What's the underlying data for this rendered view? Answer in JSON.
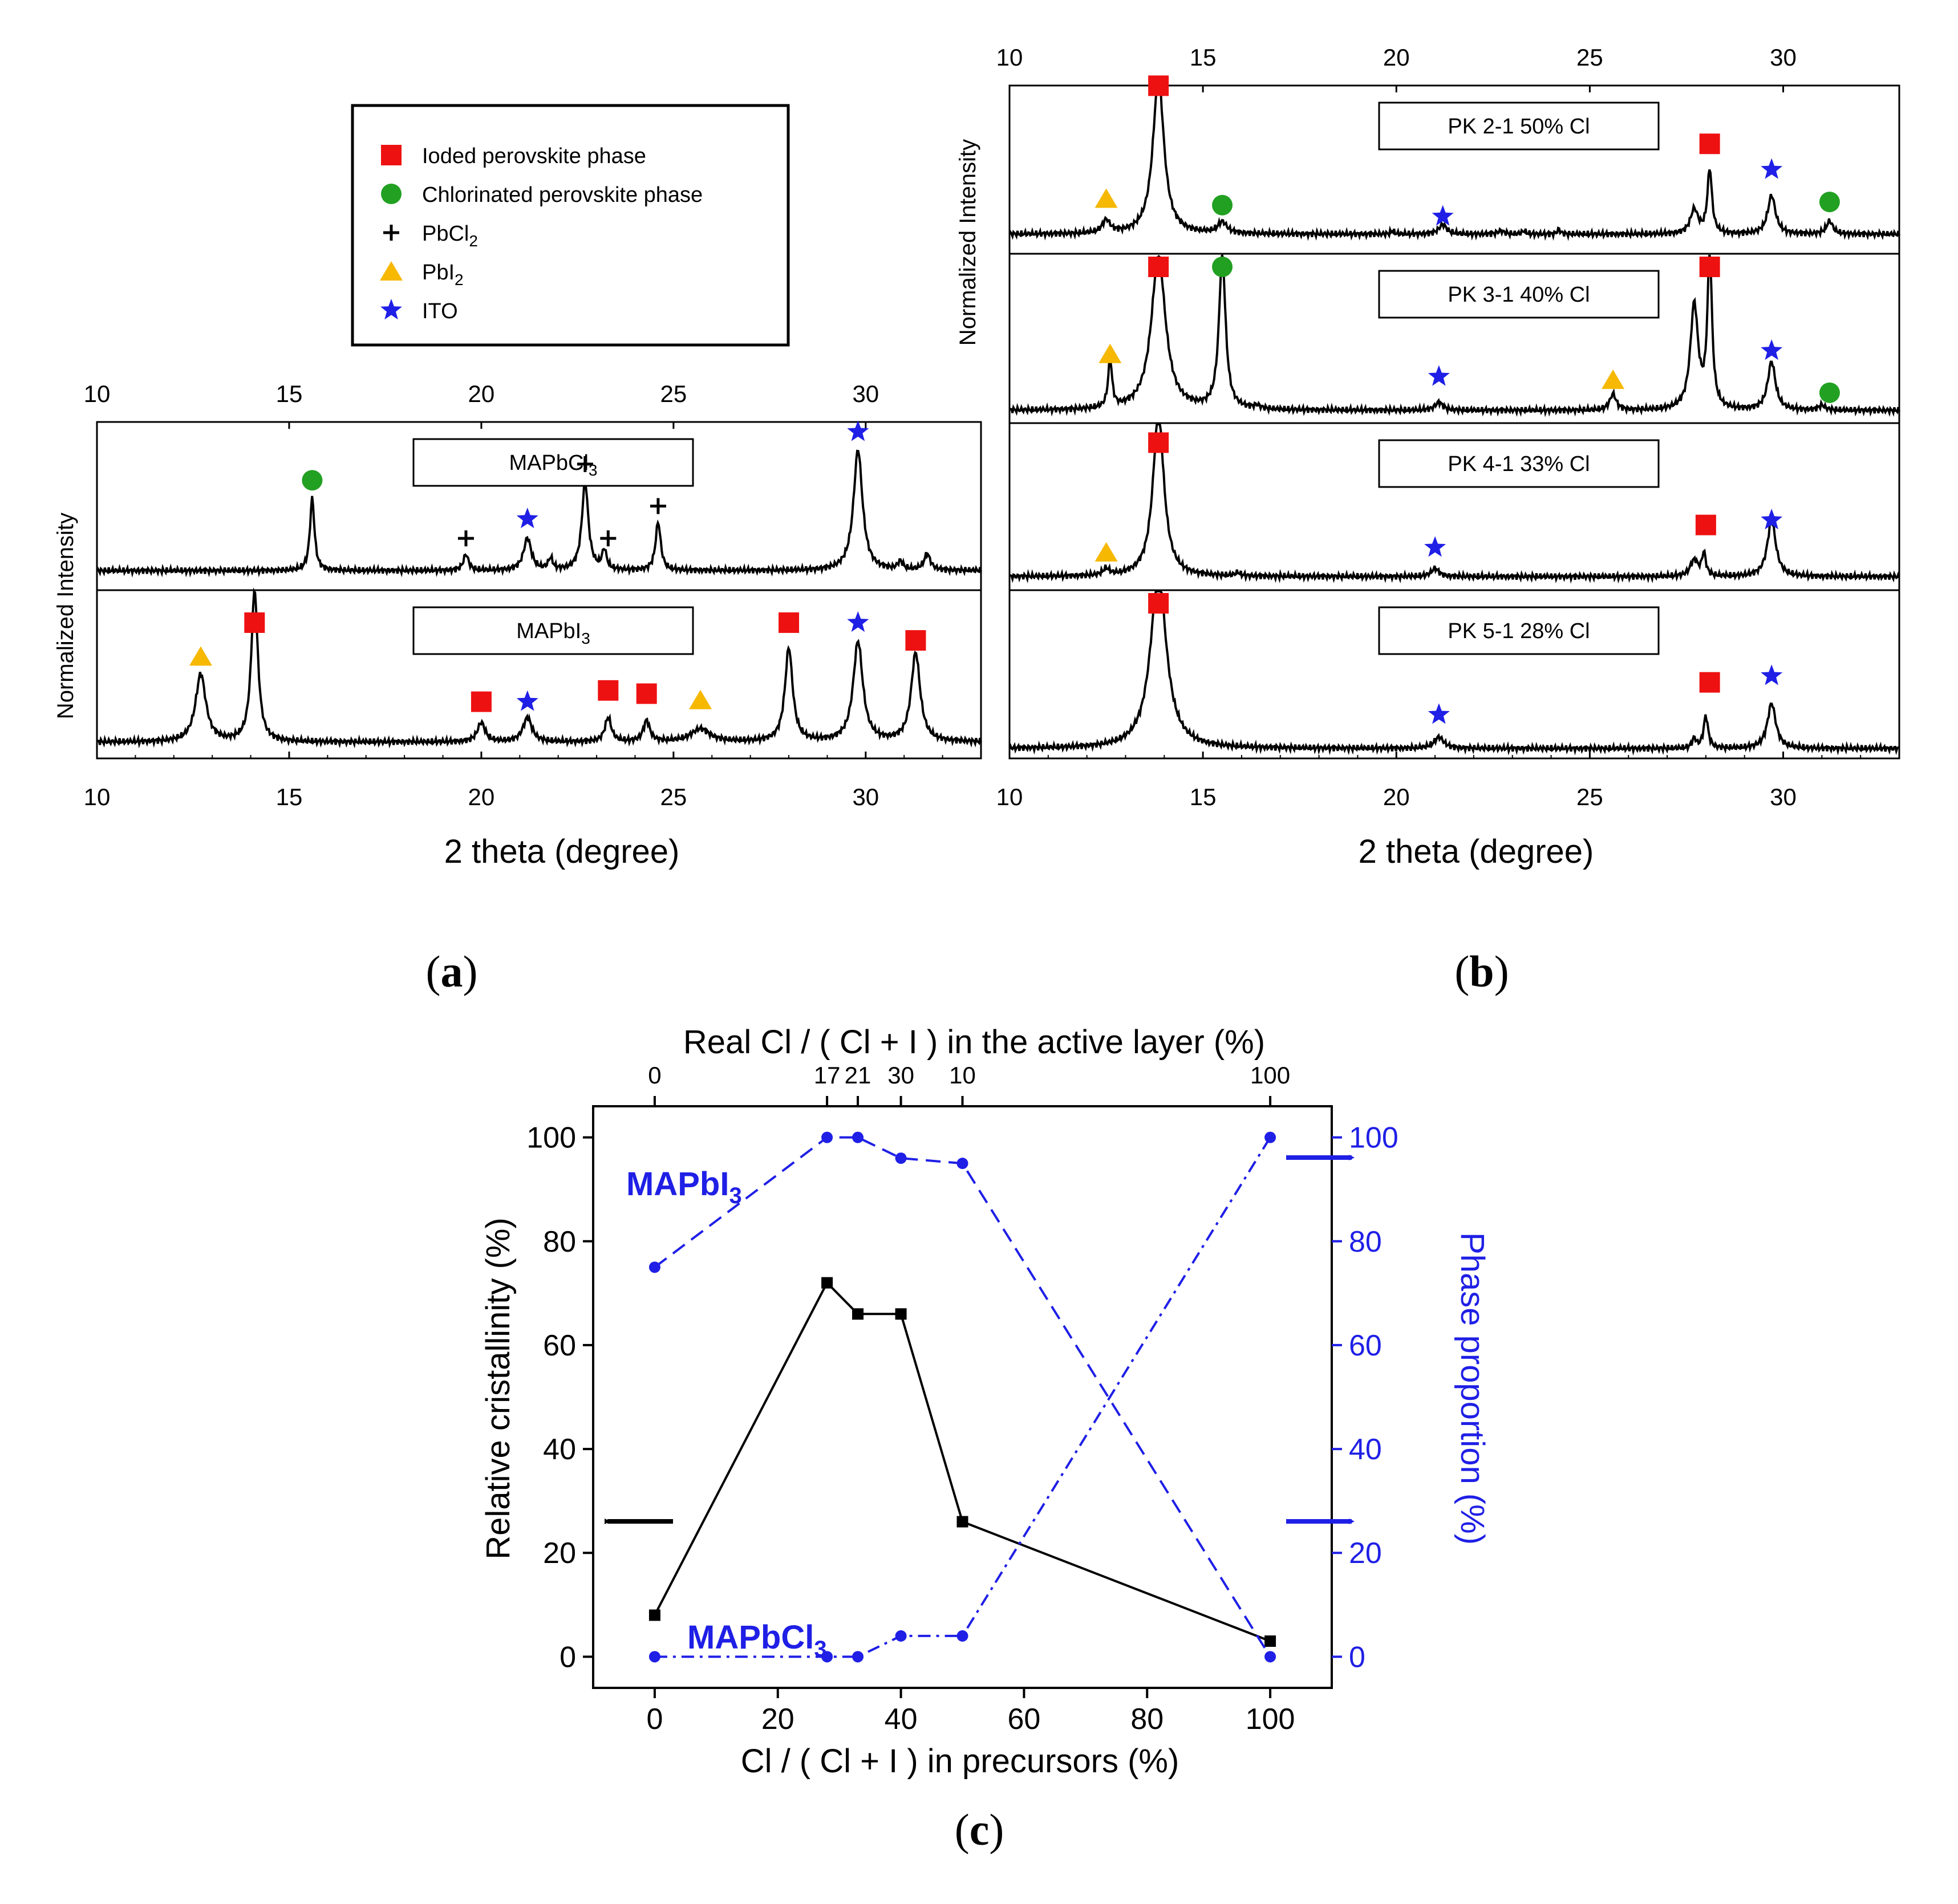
{
  "colors": {
    "axis": "#000000",
    "curve": "#000000",
    "iodide": "#ee1111",
    "chlorinated": "#22a022",
    "pbcl2": "#000000",
    "pbi2": "#f6b800",
    "ito": "#1f1fe6",
    "phase": "#1f1fe6"
  },
  "legend": [
    {
      "marker": "square",
      "color": "#ee1111",
      "label": "Ioded perovskite phase"
    },
    {
      "marker": "circle",
      "color": "#22a022",
      "label": "Chlorinated perovskite phase"
    },
    {
      "marker": "plus",
      "color": "#000000",
      "label": "PbCl",
      "sub": "2"
    },
    {
      "marker": "triangle",
      "color": "#f6b800",
      "label": "PbI",
      "sub": "2"
    },
    {
      "marker": "star",
      "color": "#1f1fe6",
      "label": "ITO"
    }
  ],
  "labels": {
    "ylabel_xrd": "Normalized Intensity",
    "xlabel_xrd": "2 theta (degree)",
    "xlabel_c": "Cl / ( Cl + I ) in precursors (%)",
    "xlabel_c_top": "Real Cl / ( Cl + I ) in the active layer (%)",
    "ylabel_c_left": "Relative cristallinity (%)",
    "ylabel_c_right": "Phase proportion (%)",
    "annot_mapbi3": "MAPbI",
    "annot_mapbcl3": "MAPbCl",
    "annot_sub": "3",
    "panel_a": "a",
    "panel_b": "b",
    "panel_c": "c"
  },
  "chart_data": [
    {
      "id": "a",
      "type": "line",
      "xlabel": "2 theta (degree)",
      "ylabel": "Normalized Intensity",
      "xlim": [
        10,
        33
      ],
      "xticks": [
        10,
        15,
        20,
        25,
        30
      ],
      "panels": [
        {
          "label": "MAPbCl",
          "label_sub": "3",
          "baseline": 0.1,
          "peaks": [
            [
              15.6,
              0.45,
              0.07
            ],
            [
              19.6,
              0.1,
              0.08
            ],
            [
              21.2,
              0.2,
              0.12
            ],
            [
              21.8,
              0.07,
              0.07
            ],
            [
              22.7,
              0.55,
              0.1
            ],
            [
              23.2,
              0.12,
              0.07
            ],
            [
              24.6,
              0.3,
              0.08
            ],
            [
              29.8,
              0.75,
              0.14
            ],
            [
              30.9,
              0.05,
              0.08
            ],
            [
              31.6,
              0.1,
              0.1
            ]
          ],
          "markers": [
            {
              "type": "circle",
              "x": 15.6,
              "y": 0.66
            },
            {
              "type": "plus",
              "x": 19.6,
              "y": 0.3
            },
            {
              "type": "star",
              "x": 21.2,
              "y": 0.42
            },
            {
              "type": "plus",
              "x": 22.7,
              "y": 0.76
            },
            {
              "type": "plus",
              "x": 23.3,
              "y": 0.3
            },
            {
              "type": "plus",
              "x": 24.6,
              "y": 0.5
            },
            {
              "type": "star",
              "x": 29.8,
              "y": 0.96
            }
          ]
        },
        {
          "label": "MAPbI",
          "label_sub": "3",
          "baseline": 0.08,
          "peaks": [
            [
              12.7,
              0.42,
              0.16
            ],
            [
              14.1,
              0.95,
              0.1
            ],
            [
              20.0,
              0.12,
              0.12
            ],
            [
              21.2,
              0.15,
              0.14
            ],
            [
              23.3,
              0.15,
              0.1
            ],
            [
              24.3,
              0.13,
              0.1
            ],
            [
              25.7,
              0.08,
              0.3
            ],
            [
              28.0,
              0.58,
              0.12
            ],
            [
              29.8,
              0.62,
              0.15
            ],
            [
              31.3,
              0.55,
              0.14
            ]
          ],
          "markers": [
            {
              "type": "triangle",
              "x": 12.7,
              "y": 0.61
            },
            {
              "type": "square",
              "x": 14.1,
              "y": 0.82
            },
            {
              "type": "square",
              "x": 20.0,
              "y": 0.33
            },
            {
              "type": "star",
              "x": 21.2,
              "y": 0.33
            },
            {
              "type": "square",
              "x": 23.3,
              "y": 0.4
            },
            {
              "type": "square",
              "x": 24.3,
              "y": 0.38
            },
            {
              "type": "triangle",
              "x": 25.7,
              "y": 0.34
            },
            {
              "type": "square",
              "x": 28.0,
              "y": 0.82
            },
            {
              "type": "star",
              "x": 29.8,
              "y": 0.82
            },
            {
              "type": "square",
              "x": 31.3,
              "y": 0.71
            }
          ]
        }
      ]
    },
    {
      "id": "b",
      "type": "line",
      "xlabel": "2 theta (degree)",
      "ylabel": "Normalized Intensity",
      "xlim": [
        10,
        33
      ],
      "xticks": [
        10,
        15,
        20,
        25,
        30
      ],
      "panels": [
        {
          "label": "PK 2-1 50% Cl",
          "baseline": 0.1,
          "peaks": [
            [
              12.5,
              0.08,
              0.12
            ],
            [
              13.85,
              0.98,
              0.17
            ],
            [
              15.5,
              0.07,
              0.14
            ],
            [
              19.9,
              0.02,
              0.05
            ],
            [
              21.2,
              0.06,
              0.12
            ],
            [
              22.7,
              0.02,
              0.1
            ],
            [
              23.3,
              0.02,
              0.06
            ],
            [
              24.2,
              0.03,
              0.05
            ],
            [
              27.7,
              0.15,
              0.12
            ],
            [
              28.1,
              0.4,
              0.07
            ],
            [
              29.7,
              0.24,
              0.12
            ],
            [
              31.2,
              0.08,
              0.1
            ]
          ],
          "markers": [
            {
              "type": "square",
              "x": 13.85,
              "y": 1.02
            },
            {
              "type": "triangle",
              "x": 12.5,
              "y": 0.32
            },
            {
              "type": "circle",
              "x": 15.5,
              "y": 0.28
            },
            {
              "type": "star",
              "x": 21.2,
              "y": 0.21
            },
            {
              "type": "square",
              "x": 28.1,
              "y": 0.66
            },
            {
              "type": "star",
              "x": 29.7,
              "y": 0.5
            },
            {
              "type": "circle",
              "x": 31.2,
              "y": 0.3
            }
          ]
        },
        {
          "label": "PK 3-1 40% Cl",
          "baseline": 0.05,
          "peaks": [
            [
              12.6,
              0.3,
              0.06
            ],
            [
              13.85,
              0.96,
              0.22
            ],
            [
              15.5,
              0.96,
              0.1
            ],
            [
              16.4,
              0.02,
              0.1
            ],
            [
              21.1,
              0.05,
              0.12
            ],
            [
              25.6,
              0.1,
              0.1
            ],
            [
              27.7,
              0.65,
              0.12
            ],
            [
              28.1,
              0.96,
              0.07
            ],
            [
              29.7,
              0.3,
              0.12
            ],
            [
              31.0,
              0.03,
              0.1
            ]
          ],
          "markers": [
            {
              "type": "square",
              "x": 13.85,
              "y": 0.94
            },
            {
              "type": "circle",
              "x": 15.5,
              "y": 0.94
            },
            {
              "type": "triangle",
              "x": 12.6,
              "y": 0.4
            },
            {
              "type": "star",
              "x": 21.1,
              "y": 0.26
            },
            {
              "type": "triangle",
              "x": 25.6,
              "y": 0.24
            },
            {
              "type": "square",
              "x": 28.1,
              "y": 0.94
            },
            {
              "type": "star",
              "x": 29.7,
              "y": 0.42
            },
            {
              "type": "circle",
              "x": 31.2,
              "y": 0.16
            }
          ]
        },
        {
          "label": "PK 4-1 33% Cl",
          "baseline": 0.07,
          "peaks": [
            [
              12.5,
              0.04,
              0.1
            ],
            [
              13.85,
              1.02,
              0.17
            ],
            [
              15.9,
              0.02,
              0.08
            ],
            [
              21.0,
              0.05,
              0.12
            ],
            [
              27.7,
              0.1,
              0.12
            ],
            [
              27.95,
              0.14,
              0.06
            ],
            [
              29.7,
              0.35,
              0.13
            ]
          ],
          "markers": [
            {
              "type": "square",
              "x": 13.85,
              "y": 0.9
            },
            {
              "type": "triangle",
              "x": 12.5,
              "y": 0.22
            },
            {
              "type": "star",
              "x": 21.0,
              "y": 0.25
            },
            {
              "type": "square",
              "x": 28.0,
              "y": 0.39
            },
            {
              "type": "star",
              "x": 29.7,
              "y": 0.42
            }
          ]
        },
        {
          "label": "PK 5-1 28% Cl",
          "baseline": 0.04,
          "peaks": [
            [
              13.85,
              1.08,
              0.25
            ],
            [
              21.1,
              0.07,
              0.15
            ],
            [
              27.7,
              0.06,
              0.06
            ],
            [
              28.0,
              0.2,
              0.07
            ],
            [
              29.7,
              0.28,
              0.13
            ]
          ],
          "markers": [
            {
              "type": "square",
              "x": 13.85,
              "y": 0.94
            },
            {
              "type": "star",
              "x": 21.1,
              "y": 0.25
            },
            {
              "type": "square",
              "x": 28.1,
              "y": 0.45
            },
            {
              "type": "star",
              "x": 29.7,
              "y": 0.49
            }
          ]
        }
      ]
    },
    {
      "id": "c",
      "type": "line",
      "xlabel": "Cl / ( Cl + I ) in precursors (%)",
      "xlabel_top": "Real Cl / ( Cl + I ) in the active layer (%)",
      "ylabel_left": "Relative cristallinity (%)",
      "ylabel_right": "Phase proportion (%)",
      "xlim": [
        -10,
        110
      ],
      "ylim": [
        -6,
        106
      ],
      "xticks": [
        0,
        20,
        40,
        60,
        80,
        100
      ],
      "yticks": [
        0,
        20,
        40,
        60,
        80,
        100
      ],
      "top_ticks": [
        {
          "x": 0,
          "label": "0"
        },
        {
          "x": 28,
          "label": "17"
        },
        {
          "x": 33,
          "label": "21"
        },
        {
          "x": 40,
          "label": "30"
        },
        {
          "x": 50,
          "label": "10"
        },
        {
          "x": 100,
          "label": "100"
        }
      ],
      "series": [
        {
          "name": "Relative cristallinity",
          "axis": "left",
          "color": "#000000",
          "style": "solid",
          "marker": "square",
          "x": [
            0,
            28,
            33,
            40,
            50,
            100
          ],
          "y": [
            8,
            72,
            66,
            66,
            26,
            3
          ]
        },
        {
          "name": "MAPbI3",
          "axis": "right",
          "color": "#1f1fe6",
          "style": "dash",
          "marker": "circle",
          "x": [
            0,
            28,
            33,
            40,
            50,
            100
          ],
          "y": [
            75,
            100,
            100,
            96,
            95,
            0
          ]
        },
        {
          "name": "MAPbCl3",
          "axis": "right",
          "color": "#1f1fe6",
          "style": "dashdot",
          "marker": "circle",
          "x": [
            0,
            28,
            33,
            40,
            50,
            100
          ],
          "y": [
            0,
            0,
            0,
            4,
            4,
            100
          ]
        }
      ]
    }
  ]
}
